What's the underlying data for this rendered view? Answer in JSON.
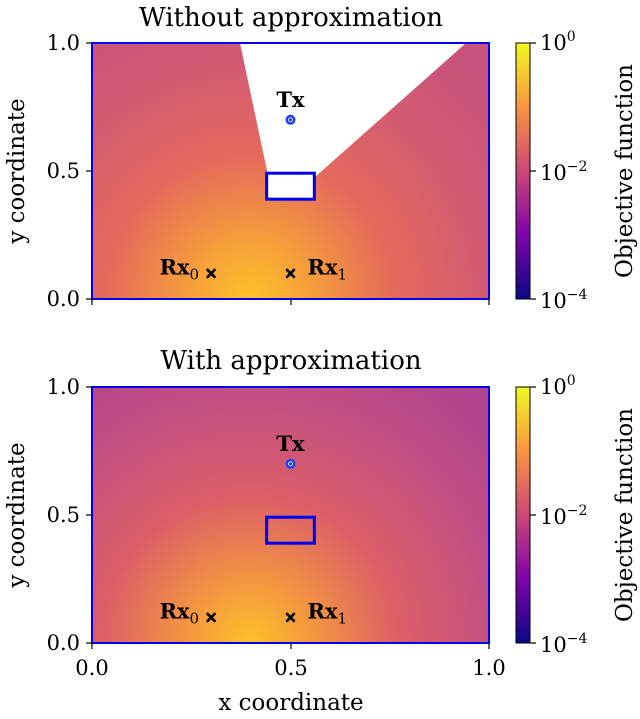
{
  "chart_data": [
    {
      "type": "heatmap",
      "title": "Without approximation",
      "xlabel": "",
      "ylabel": "y coordinate",
      "xlim": [
        0.0,
        1.0
      ],
      "ylim": [
        0.0,
        1.0
      ],
      "xticks": [
        "0.0",
        "0.5",
        "1.0"
      ],
      "yticks": [
        "0.0",
        "0.5",
        "1.0"
      ],
      "colorbar": {
        "label": "Objective function",
        "scale": "log",
        "range": [
          0.0001,
          1
        ],
        "ticks": [
          "10^0",
          "10^-2",
          "10^-4"
        ]
      },
      "colormap": "plasma",
      "masked_region": "blocked (white)",
      "transmitter": {
        "label": "Tx",
        "x": 0.5,
        "y": 0.7
      },
      "receivers": [
        {
          "label": "Rx",
          "index": "0",
          "x": 0.3,
          "y": 0.1
        },
        {
          "label": "Rx",
          "index": "1",
          "x": 0.5,
          "y": 0.1
        }
      ],
      "obstacle": {
        "x0": 0.45,
        "x1": 0.55,
        "y0": 0.45,
        "y1": 0.55
      }
    },
    {
      "type": "heatmap",
      "title": "With approximation",
      "xlabel": "x coordinate",
      "ylabel": "y coordinate",
      "xlim": [
        0.0,
        1.0
      ],
      "ylim": [
        0.0,
        1.0
      ],
      "xticks": [
        "0.0",
        "0.5",
        "1.0"
      ],
      "yticks": [
        "0.0",
        "0.5",
        "1.0"
      ],
      "colorbar": {
        "label": "Objective function",
        "scale": "log",
        "range": [
          0.0001,
          1
        ],
        "ticks": [
          "10^0",
          "10^-2",
          "10^-4"
        ]
      },
      "colormap": "plasma",
      "transmitter": {
        "label": "Tx",
        "x": 0.5,
        "y": 0.7
      },
      "receivers": [
        {
          "label": "Rx",
          "index": "0",
          "x": 0.3,
          "y": 0.1
        },
        {
          "label": "Rx",
          "index": "1",
          "x": 0.5,
          "y": 0.1
        }
      ],
      "obstacle": {
        "x0": 0.45,
        "x1": 0.55,
        "y0": 0.45,
        "y1": 0.55
      }
    }
  ],
  "colors": {
    "frame": "#0000ee",
    "tx_marker": "#1f3ff0",
    "rx_marker": "#000000"
  }
}
